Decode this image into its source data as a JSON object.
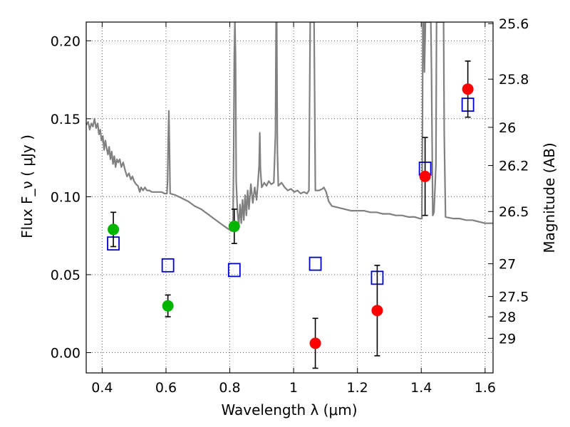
{
  "chart_data": {
    "type": "scatter",
    "xlabel": "Wavelength  λ (μm)",
    "ylabel": "Flux  F_ν  ( μJy )",
    "ylabel_right": "Magnitude (AB)",
    "xlim": [
      0.35,
      1.625
    ],
    "ylim": [
      -0.013,
      0.212
    ],
    "grid": true,
    "x_ticks": [
      {
        "value": 0.4,
        "label": "0.4"
      },
      {
        "value": 0.6,
        "label": "0.6"
      },
      {
        "value": 0.8,
        "label": "0.8"
      },
      {
        "value": 1.0,
        "label": "1"
      },
      {
        "value": 1.2,
        "label": "1.2"
      },
      {
        "value": 1.4,
        "label": "1.4"
      },
      {
        "value": 1.6,
        "label": "1.6"
      }
    ],
    "y_ticks": [
      {
        "value": 0.0,
        "label": "0.00"
      },
      {
        "value": 0.05,
        "label": "0.05"
      },
      {
        "value": 0.1,
        "label": "0.10"
      },
      {
        "value": 0.15,
        "label": "0.15"
      },
      {
        "value": 0.2,
        "label": "0.20"
      }
    ],
    "mag_ticks": [
      {
        "value": 0.211,
        "label": "25.6"
      },
      {
        "value": 0.1754,
        "label": "25.8"
      },
      {
        "value": 0.1445,
        "label": "26"
      },
      {
        "value": 0.12,
        "label": "26.2"
      },
      {
        "value": 0.0905,
        "label": "26.5"
      },
      {
        "value": 0.057,
        "label": "27"
      },
      {
        "value": 0.036,
        "label": "27.5"
      },
      {
        "value": 0.023,
        "label": "28"
      },
      {
        "value": 0.0092,
        "label": "29"
      }
    ],
    "series": [
      {
        "color": "#00b400",
        "marker": "circle",
        "points": [
          {
            "x": 0.435,
            "y": 0.079,
            "err_lo": 0.011,
            "err_hi": 0.011
          },
          {
            "x": 0.606,
            "y": 0.03,
            "err_lo": 0.007,
            "err_hi": 0.007
          },
          {
            "x": 0.814,
            "y": 0.081,
            "err_lo": 0.011,
            "err_hi": 0.011
          }
        ]
      },
      {
        "color": "#ff0000",
        "marker": "circle",
        "points": [
          {
            "x": 1.068,
            "y": 0.006,
            "err_lo": 0.016,
            "err_hi": 0.016
          },
          {
            "x": 1.262,
            "y": 0.027,
            "err_lo": 0.029,
            "err_hi": 0.029
          },
          {
            "x": 1.412,
            "y": 0.113,
            "err_lo": 0.025,
            "err_hi": 0.025
          },
          {
            "x": 1.546,
            "y": 0.169,
            "err_lo": 0.018,
            "err_hi": 0.018
          }
        ]
      },
      {
        "color": "#0000cc",
        "marker": "square-open",
        "points": [
          {
            "x": 0.435,
            "y": 0.07
          },
          {
            "x": 0.606,
            "y": 0.056
          },
          {
            "x": 0.814,
            "y": 0.053
          },
          {
            "x": 1.068,
            "y": 0.057
          },
          {
            "x": 1.262,
            "y": 0.048
          },
          {
            "x": 1.412,
            "y": 0.118
          },
          {
            "x": 1.546,
            "y": 0.159
          }
        ]
      }
    ],
    "model_line": {
      "color": "#808080",
      "points": [
        [
          0.35,
          0.146
        ],
        [
          0.356,
          0.148
        ],
        [
          0.361,
          0.143
        ],
        [
          0.366,
          0.147
        ],
        [
          0.371,
          0.145
        ],
        [
          0.376,
          0.15
        ],
        [
          0.381,
          0.144
        ],
        [
          0.386,
          0.147
        ],
        [
          0.39,
          0.14
        ],
        [
          0.394,
          0.143
        ],
        [
          0.398,
          0.136
        ],
        [
          0.402,
          0.139
        ],
        [
          0.406,
          0.13
        ],
        [
          0.41,
          0.136
        ],
        [
          0.414,
          0.131
        ],
        [
          0.418,
          0.127
        ],
        [
          0.422,
          0.132
        ],
        [
          0.426,
          0.124
        ],
        [
          0.43,
          0.129
        ],
        [
          0.434,
          0.121
        ],
        [
          0.438,
          0.126
        ],
        [
          0.442,
          0.119
        ],
        [
          0.446,
          0.124
        ],
        [
          0.45,
          0.122
        ],
        [
          0.455,
          0.124
        ],
        [
          0.46,
          0.119
        ],
        [
          0.466,
          0.122
        ],
        [
          0.472,
          0.117
        ],
        [
          0.478,
          0.113
        ],
        [
          0.484,
          0.115
        ],
        [
          0.49,
          0.111
        ],
        [
          0.495,
          0.113
        ],
        [
          0.5,
          0.11
        ],
        [
          0.506,
          0.108
        ],
        [
          0.512,
          0.107
        ],
        [
          0.518,
          0.103
        ],
        [
          0.522,
          0.106
        ],
        [
          0.528,
          0.104
        ],
        [
          0.534,
          0.106
        ],
        [
          0.54,
          0.104
        ],
        [
          0.548,
          0.104
        ],
        [
          0.556,
          0.103
        ],
        [
          0.566,
          0.103
        ],
        [
          0.576,
          0.103
        ],
        [
          0.586,
          0.103
        ],
        [
          0.596,
          0.102
        ],
        [
          0.603,
          0.102
        ],
        [
          0.605,
          0.11
        ],
        [
          0.607,
          0.136
        ],
        [
          0.609,
          0.155
        ],
        [
          0.611,
          0.13
        ],
        [
          0.613,
          0.102
        ],
        [
          0.63,
          0.101
        ],
        [
          0.65,
          0.099
        ],
        [
          0.67,
          0.097
        ],
        [
          0.69,
          0.094
        ],
        [
          0.71,
          0.092
        ],
        [
          0.73,
          0.089
        ],
        [
          0.75,
          0.086
        ],
        [
          0.77,
          0.083
        ],
        [
          0.79,
          0.08
        ],
        [
          0.805,
          0.078
        ],
        [
          0.81,
          0.08
        ],
        [
          0.812,
          0.125
        ],
        [
          0.814,
          0.19
        ],
        [
          0.816,
          0.212
        ],
        [
          0.818,
          0.19
        ],
        [
          0.82,
          0.11
        ],
        [
          0.824,
          0.09
        ],
        [
          0.828,
          0.082
        ],
        [
          0.832,
          0.095
        ],
        [
          0.836,
          0.083
        ],
        [
          0.84,
          0.098
        ],
        [
          0.844,
          0.085
        ],
        [
          0.848,
          0.101
        ],
        [
          0.852,
          0.088
        ],
        [
          0.856,
          0.104
        ],
        [
          0.86,
          0.092
        ],
        [
          0.866,
          0.108
        ],
        [
          0.872,
          0.096
        ],
        [
          0.878,
          0.106
        ],
        [
          0.884,
          0.098
        ],
        [
          0.888,
          0.108
        ],
        [
          0.892,
          0.12
        ],
        [
          0.894,
          0.141
        ],
        [
          0.896,
          0.118
        ],
        [
          0.9,
          0.106
        ],
        [
          0.908,
          0.109
        ],
        [
          0.915,
          0.107
        ],
        [
          0.922,
          0.11
        ],
        [
          0.93,
          0.108
        ],
        [
          0.938,
          0.109
        ],
        [
          0.943,
          0.14
        ],
        [
          0.945,
          0.212
        ],
        [
          0.947,
          0.212
        ],
        [
          0.949,
          0.13
        ],
        [
          0.952,
          0.107
        ],
        [
          0.962,
          0.109
        ],
        [
          0.972,
          0.106
        ],
        [
          0.982,
          0.104
        ],
        [
          0.992,
          0.105
        ],
        [
          1.002,
          0.103
        ],
        [
          1.012,
          0.104
        ],
        [
          1.022,
          0.102
        ],
        [
          1.032,
          0.103
        ],
        [
          1.042,
          0.102
        ],
        [
          1.048,
          0.104
        ],
        [
          1.05,
          0.16
        ],
        [
          1.052,
          0.212
        ],
        [
          1.064,
          0.212
        ],
        [
          1.066,
          0.16
        ],
        [
          1.068,
          0.104
        ],
        [
          1.08,
          0.104
        ],
        [
          1.09,
          0.105
        ],
        [
          1.095,
          0.106
        ],
        [
          1.102,
          0.103
        ],
        [
          1.11,
          0.097
        ],
        [
          1.12,
          0.094
        ],
        [
          1.14,
          0.093
        ],
        [
          1.16,
          0.092
        ],
        [
          1.18,
          0.091
        ],
        [
          1.2,
          0.091
        ],
        [
          1.22,
          0.091
        ],
        [
          1.24,
          0.09
        ],
        [
          1.26,
          0.09
        ],
        [
          1.28,
          0.089
        ],
        [
          1.3,
          0.089
        ],
        [
          1.32,
          0.088
        ],
        [
          1.34,
          0.088
        ],
        [
          1.36,
          0.087
        ],
        [
          1.38,
          0.087
        ],
        [
          1.395,
          0.086
        ],
        [
          1.402,
          0.086
        ],
        [
          1.404,
          0.15
        ],
        [
          1.405,
          0.212
        ],
        [
          1.408,
          0.212
        ],
        [
          1.41,
          0.18
        ],
        [
          1.413,
          0.212
        ],
        [
          1.43,
          0.212
        ],
        [
          1.432,
          0.18
        ],
        [
          1.436,
          0.088
        ],
        [
          1.44,
          0.09
        ],
        [
          1.446,
          0.12
        ],
        [
          1.448,
          0.212
        ],
        [
          1.47,
          0.212
        ],
        [
          1.472,
          0.14
        ],
        [
          1.476,
          0.087
        ],
        [
          1.5,
          0.086
        ],
        [
          1.52,
          0.086
        ],
        [
          1.54,
          0.085
        ],
        [
          1.56,
          0.085
        ],
        [
          1.58,
          0.084
        ],
        [
          1.6,
          0.083
        ],
        [
          1.625,
          0.083
        ]
      ]
    }
  }
}
